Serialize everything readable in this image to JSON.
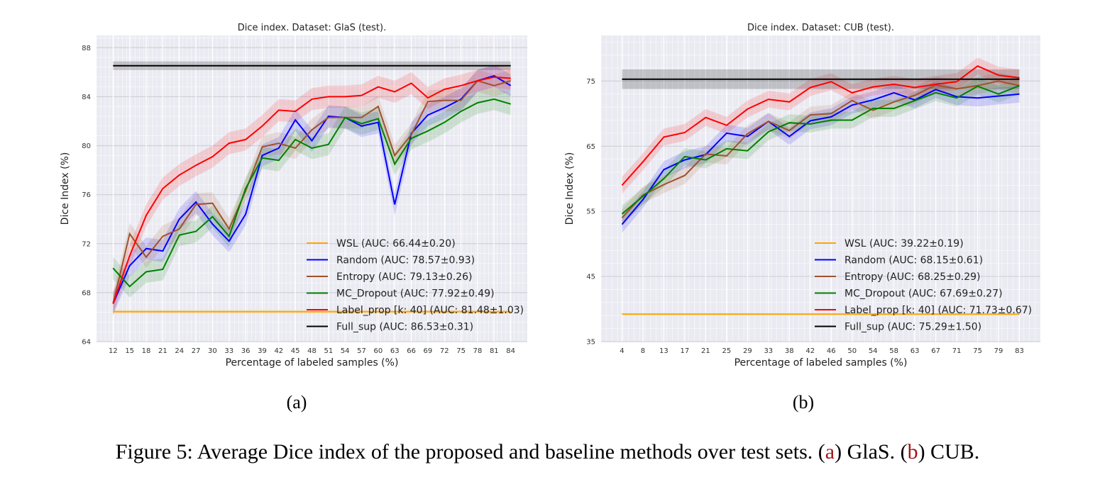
{
  "colors": {
    "WSL": "#ffa500",
    "Random": "#0000ff",
    "Entropy": "#a0522d",
    "MC_Dropout": "#008000",
    "Label_prop": "#ff0000",
    "Full_sup": "#000000",
    "plot_bg": "#eaeaf2",
    "caption_ref": "#a0161b"
  },
  "chart_data": [
    {
      "type": "line",
      "title": "Dice index. Dataset: GlaS (test).",
      "xlabel": "Percentage of labeled samples (%)",
      "ylabel": "Dice Index (%)",
      "ylim": [
        64,
        89
      ],
      "yticks": [
        64,
        68,
        72,
        76,
        80,
        84,
        88
      ],
      "grid": true,
      "legend_position": "lower-right",
      "x": [
        12,
        15,
        18,
        21,
        24,
        27,
        30,
        33,
        36,
        39,
        42,
        45,
        48,
        51,
        54,
        57,
        60,
        63,
        66,
        69,
        72,
        75,
        78,
        81,
        84
      ],
      "series": [
        {
          "name": "WSL (AUC: 66.44±0.20)",
          "key": "WSL",
          "values": [
            66.44,
            66.44,
            66.44,
            66.44,
            66.44,
            66.44,
            66.44,
            66.44,
            66.44,
            66.44,
            66.44,
            66.44,
            66.44,
            66.44,
            66.44,
            66.44,
            66.44,
            66.44,
            66.44,
            66.44,
            66.44,
            66.44,
            66.44,
            66.44,
            66.44
          ]
        },
        {
          "name": "Random (AUC: 78.57±0.93)",
          "key": "Random",
          "values": [
            67.1,
            70.2,
            71.6,
            71.4,
            74.0,
            75.4,
            73.6,
            72.2,
            74.4,
            79.2,
            79.8,
            82.1,
            80.4,
            82.4,
            82.3,
            81.6,
            81.9,
            75.2,
            81.0,
            82.5,
            83.1,
            83.8,
            85.3,
            85.7,
            84.9
          ]
        },
        {
          "name": "Entropy (AUC: 79.13±0.26)",
          "key": "Entropy",
          "values": [
            67.1,
            72.8,
            70.9,
            72.6,
            73.2,
            75.2,
            75.3,
            73.2,
            76.3,
            79.9,
            80.2,
            79.8,
            81.3,
            82.3,
            82.3,
            82.3,
            83.2,
            79.2,
            80.9,
            83.6,
            83.7,
            83.7,
            85.3,
            84.9,
            85.3
          ]
        },
        {
          "name": "MC_Dropout (AUC: 77.92±0.49)",
          "key": "MC_Dropout",
          "values": [
            70.0,
            68.5,
            69.7,
            69.9,
            72.7,
            73.0,
            74.2,
            72.6,
            76.5,
            79.0,
            78.8,
            80.5,
            79.8,
            80.1,
            82.3,
            81.8,
            82.2,
            78.5,
            80.6,
            81.2,
            81.9,
            82.8,
            83.5,
            83.8,
            83.4
          ]
        },
        {
          "name": "Label_prop [k: 40] (AUC: 81.48±1.03)",
          "key": "Label_prop",
          "values": [
            67.1,
            71.0,
            74.3,
            76.5,
            77.6,
            78.4,
            79.1,
            80.2,
            80.5,
            81.6,
            82.9,
            82.8,
            83.8,
            84.0,
            84.0,
            84.1,
            84.8,
            84.4,
            85.1,
            83.9,
            84.6,
            84.9,
            85.3,
            85.6,
            85.5
          ]
        },
        {
          "name": "Full_sup (AUC: 86.53±0.31)",
          "key": "Full_sup",
          "values": [
            86.53,
            86.53,
            86.53,
            86.53,
            86.53,
            86.53,
            86.53,
            86.53,
            86.53,
            86.53,
            86.53,
            86.53,
            86.53,
            86.53,
            86.53,
            86.53,
            86.53,
            86.53,
            86.53,
            86.53,
            86.53,
            86.53,
            86.53,
            86.53,
            86.53
          ]
        }
      ]
    },
    {
      "type": "line",
      "title": "Dice index. Dataset: CUB (test).",
      "xlabel": "Percentage of labeled samples (%)",
      "ylabel": "Dice Index (%)",
      "ylim": [
        35,
        82
      ],
      "yticks": [
        35,
        45,
        55,
        65,
        75
      ],
      "grid": true,
      "legend_position": "lower-right",
      "x": [
        4,
        8,
        13,
        17,
        21,
        25,
        29,
        33,
        38,
        42,
        46,
        50,
        54,
        58,
        63,
        67,
        71,
        75,
        79,
        83
      ],
      "series": [
        {
          "name": "WSL (AUC: 39.22±0.19)",
          "key": "WSL",
          "values": [
            39.22,
            39.22,
            39.22,
            39.22,
            39.22,
            39.22,
            39.22,
            39.22,
            39.22,
            39.22,
            39.22,
            39.22,
            39.22,
            39.22,
            39.22,
            39.22,
            39.22,
            39.22,
            39.22,
            39.22
          ]
        },
        {
          "name": "Random (AUC: 68.15±0.61)",
          "key": "Random",
          "values": [
            53.0,
            56.8,
            61.4,
            62.9,
            63.7,
            67.0,
            66.5,
            68.8,
            66.5,
            68.9,
            69.5,
            71.3,
            72.1,
            73.2,
            72.1,
            73.7,
            72.6,
            72.4,
            72.7,
            73.0
          ]
        },
        {
          "name": "Entropy (AUC: 68.25±0.29)",
          "key": "Entropy",
          "values": [
            54.0,
            57.5,
            59.1,
            60.5,
            63.8,
            63.5,
            66.9,
            68.8,
            67.4,
            69.8,
            70.0,
            72.0,
            70.5,
            71.8,
            72.8,
            74.4,
            73.8,
            74.3,
            75.0,
            74.3
          ]
        },
        {
          "name": "MC_Dropout (AUC: 67.69±0.27)",
          "key": "MC_Dropout",
          "values": [
            54.6,
            57.3,
            60.0,
            63.4,
            62.9,
            64.6,
            64.3,
            67.2,
            68.6,
            68.4,
            69.0,
            69.0,
            70.8,
            70.8,
            72.0,
            73.2,
            72.4,
            74.2,
            73.0,
            74.3
          ]
        },
        {
          "name": "Label_prop [k: 40] (AUC: 71.73±0.67)",
          "key": "Label_prop",
          "values": [
            59.0,
            62.6,
            66.4,
            67.1,
            69.4,
            68.2,
            70.7,
            72.2,
            71.8,
            74.0,
            74.9,
            73.2,
            74.1,
            74.5,
            74.0,
            74.5,
            74.9,
            77.3,
            75.9,
            75.5
          ]
        },
        {
          "name": "Full_sup (AUC: 75.29±1.50)",
          "key": "Full_sup",
          "values": [
            75.29,
            75.29,
            75.29,
            75.29,
            75.29,
            75.29,
            75.29,
            75.29,
            75.29,
            75.29,
            75.29,
            75.29,
            75.29,
            75.29,
            75.29,
            75.29,
            75.29,
            75.29,
            75.29,
            75.29
          ]
        }
      ]
    }
  ],
  "subfigure_labels": [
    "(a)",
    "(b)"
  ],
  "caption": {
    "prefix": "Figure 5: Average Dice index of the proposed and baseline methods over test sets. (",
    "ref_a": "a",
    "mid_a": ") GlaS. (",
    "ref_b": "b",
    "mid_b": ") CUB."
  }
}
